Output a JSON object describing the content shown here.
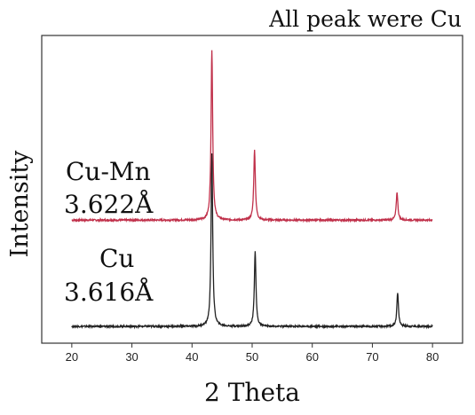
{
  "chart_data": {
    "type": "line",
    "title": "All peak were Cu",
    "xlabel": "2 Theta",
    "ylabel": "Intensity",
    "xlim": [
      15,
      85
    ],
    "xticks": [
      20,
      30,
      40,
      50,
      60,
      70,
      80
    ],
    "ylim": [
      0,
      1.1
    ],
    "yticks_visible": false,
    "grid": false,
    "series": [
      {
        "name": "Cu-Mn",
        "annotation_lines": [
          "Cu-Mn",
          "3.622Å"
        ],
        "color": "#c0304a",
        "baseline": 0.44,
        "noise": 0.003,
        "peaks": [
          {
            "x": 43.3,
            "height": 0.61
          },
          {
            "x": 50.4,
            "height": 0.25
          },
          {
            "x": 74.1,
            "height": 0.1
          }
        ]
      },
      {
        "name": "Cu",
        "annotation_lines": [
          "Cu",
          "3.616Å"
        ],
        "color": "#222222",
        "baseline": 0.06,
        "noise": 0.003,
        "peaks": [
          {
            "x": 43.3,
            "height": 0.62
          },
          {
            "x": 50.5,
            "height": 0.27
          },
          {
            "x": 74.2,
            "height": 0.12
          }
        ]
      }
    ]
  }
}
